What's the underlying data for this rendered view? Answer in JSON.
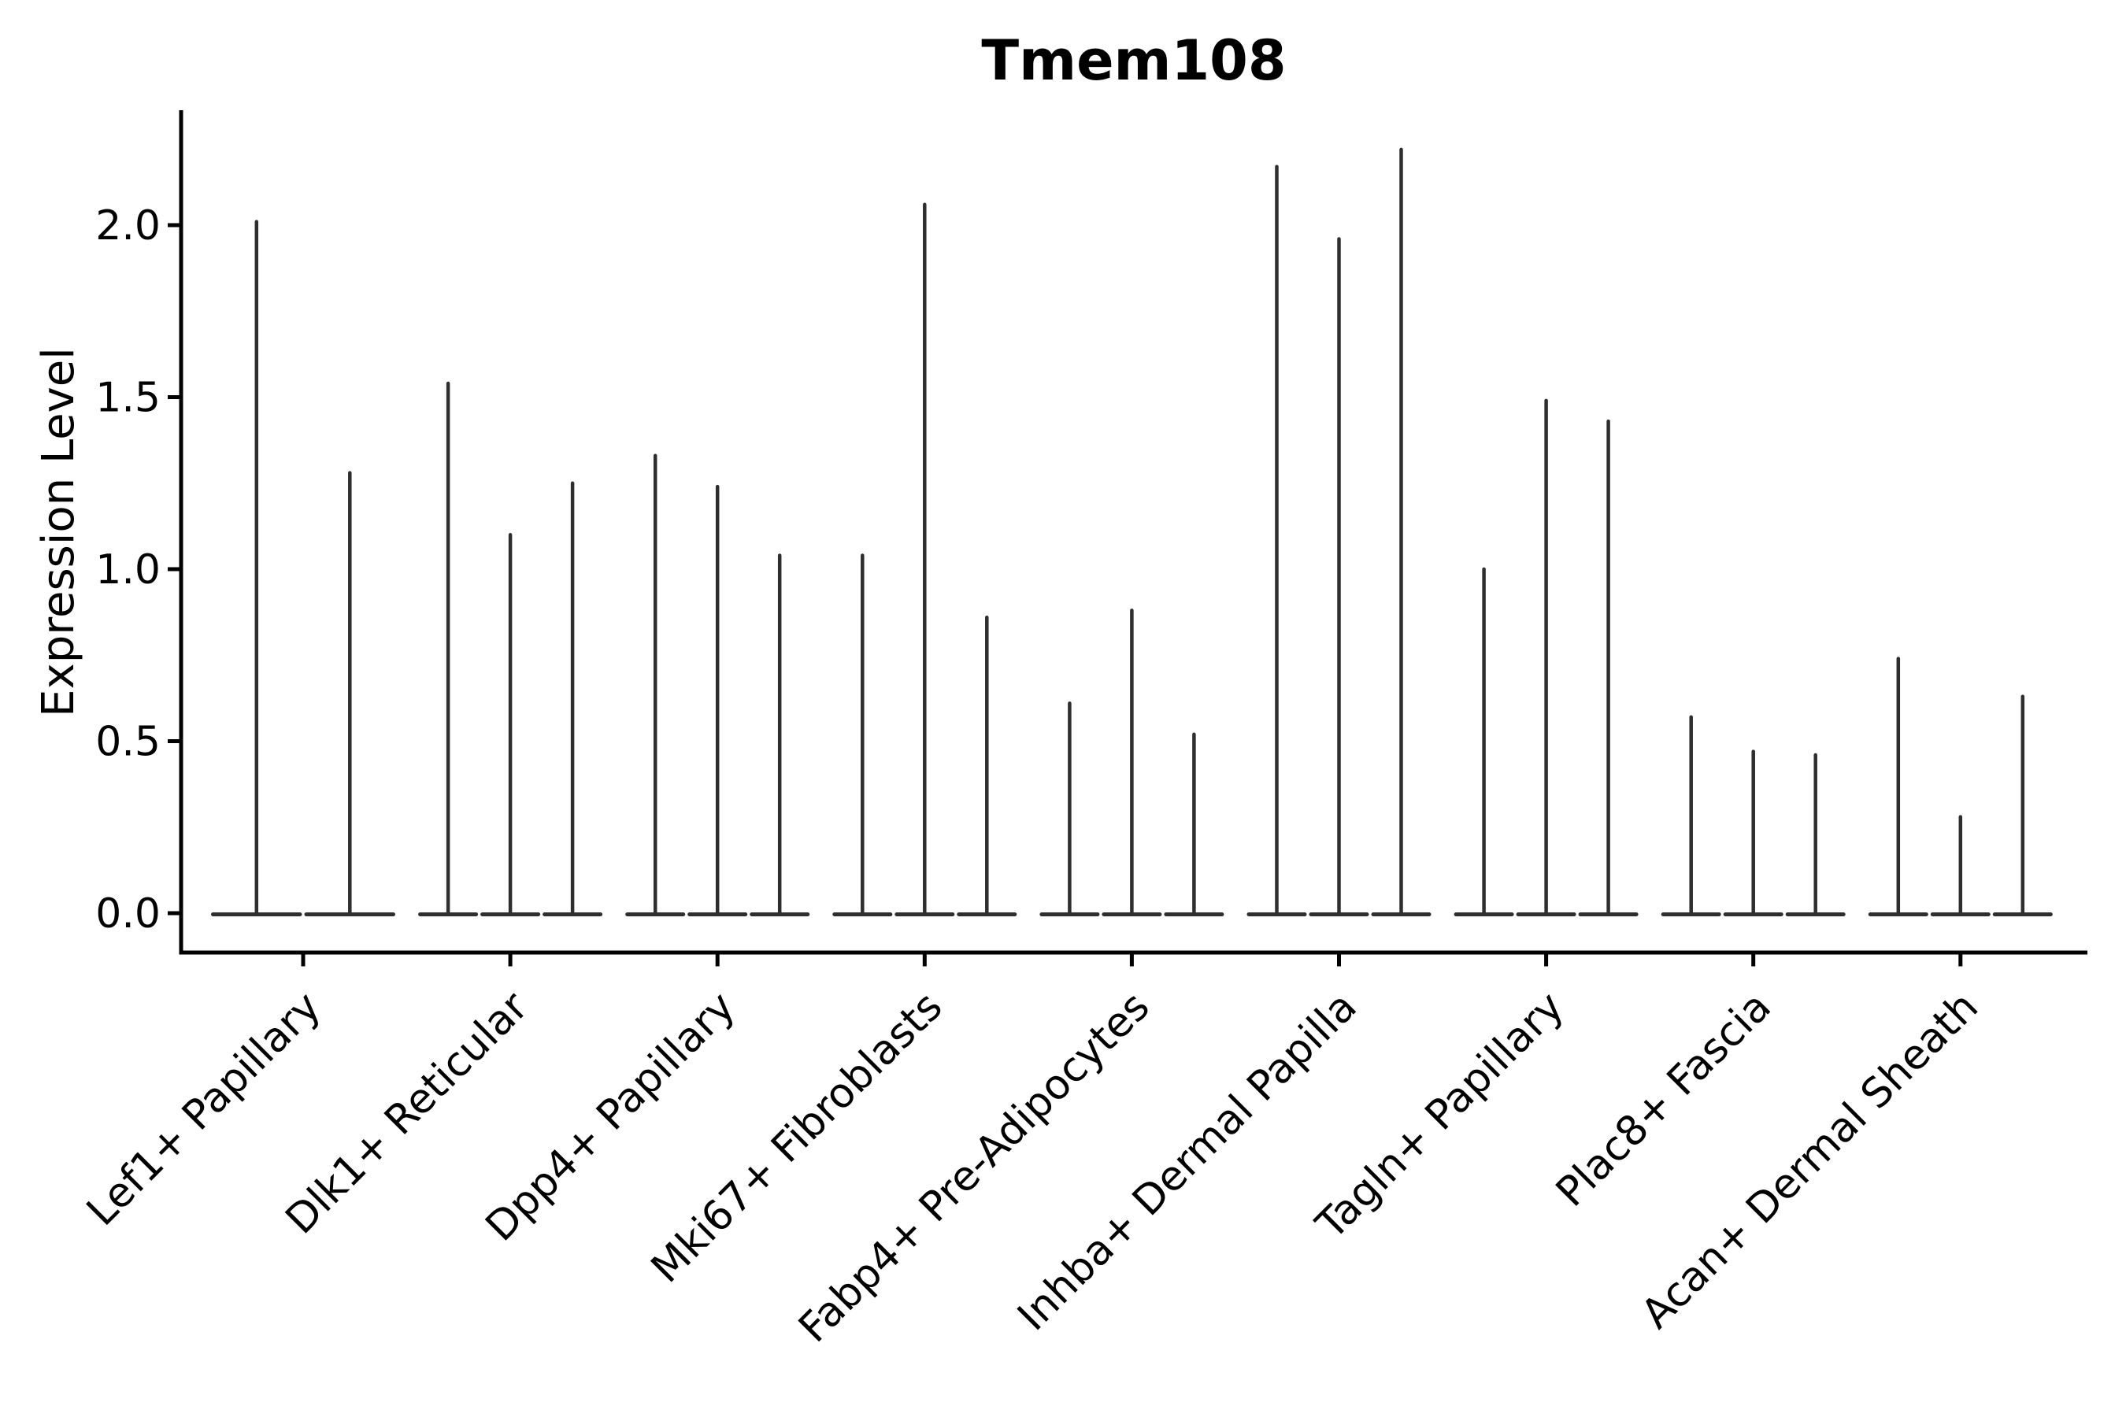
{
  "figure": {
    "title": "Tmem108",
    "ylabel": "Expression Level"
  },
  "chart_data": {
    "type": "violin",
    "title": "Tmem108",
    "xlabel": "",
    "ylabel": "Expression Level",
    "categories": [
      {
        "label": "Lef1+ Papillary",
        "violin_max_values": [
          2.01,
          1.28
        ]
      },
      {
        "label": "Dlk1+ Reticular",
        "violin_max_values": [
          1.54,
          1.1,
          1.25
        ]
      },
      {
        "label": "Dpp4+ Papillary",
        "violin_max_values": [
          1.33,
          1.24,
          1.04
        ]
      },
      {
        "label": "Mki67+ Fibroblasts",
        "violin_max_values": [
          1.04,
          2.06,
          0.86
        ]
      },
      {
        "label": "Fabp4+ Pre-Adipocytes",
        "violin_max_values": [
          0.61,
          0.88,
          0.52
        ]
      },
      {
        "label": "Inhba+ Dermal Papilla",
        "violin_max_values": [
          2.17,
          1.96,
          2.22
        ]
      },
      {
        "label": "Tagln+ Papillary",
        "violin_max_values": [
          1.0,
          1.49,
          1.43
        ]
      },
      {
        "label": "Plac8+ Fascia",
        "violin_max_values": [
          0.57,
          0.47,
          0.46
        ]
      },
      {
        "label": "Acan+ Dermal Sheath",
        "violin_max_values": [
          0.74,
          0.28,
          0.63
        ]
      }
    ],
    "violins_baseline_value": 0.0,
    "yticks": [
      "0.0",
      "0.5",
      "1.0",
      "1.5",
      "2.0"
    ],
    "ylim": [
      -0.11,
      2.33
    ],
    "grid": false,
    "legend_position": "none",
    "x_tick_rotation_deg": 45,
    "violin_color": "#2e2e2e",
    "axis_color": "#000000",
    "background_color": "#ffffff"
  }
}
